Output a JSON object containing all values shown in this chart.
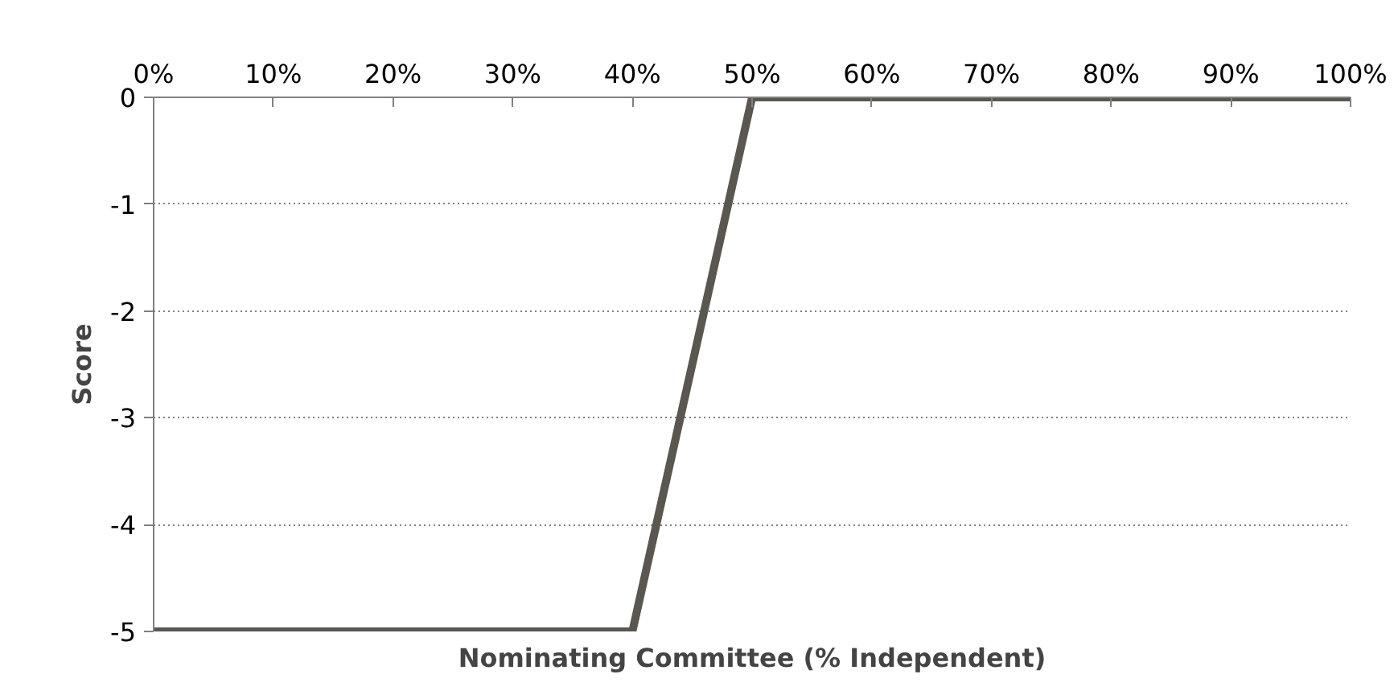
{
  "chart_data": {
    "type": "line",
    "xlabel": "Nominating Committee (% Independent)",
    "ylabel": "Score",
    "x": [
      0,
      40,
      50,
      100
    ],
    "series": [
      {
        "color": "#5a5650",
        "values": [
          -5,
          -5,
          0,
          0
        ]
      }
    ],
    "xlim": [
      0,
      100
    ],
    "xticks": [
      {
        "value": 0,
        "label": "0%"
      },
      {
        "value": 10,
        "label": "10%"
      },
      {
        "value": 20,
        "label": "20%"
      },
      {
        "value": 30,
        "label": "30%"
      },
      {
        "value": 40,
        "label": "40%"
      },
      {
        "value": 50,
        "label": "50%"
      },
      {
        "value": 60,
        "label": "60%"
      },
      {
        "value": 70,
        "label": "70%"
      },
      {
        "value": 80,
        "label": "80%"
      },
      {
        "value": 90,
        "label": "90%"
      },
      {
        "value": 100,
        "label": "100%"
      }
    ],
    "ylim": [
      -5,
      0
    ],
    "yticks": [
      0,
      -1,
      -2,
      -3,
      -4,
      -5
    ],
    "grid": "y",
    "line_style": "solid"
  }
}
